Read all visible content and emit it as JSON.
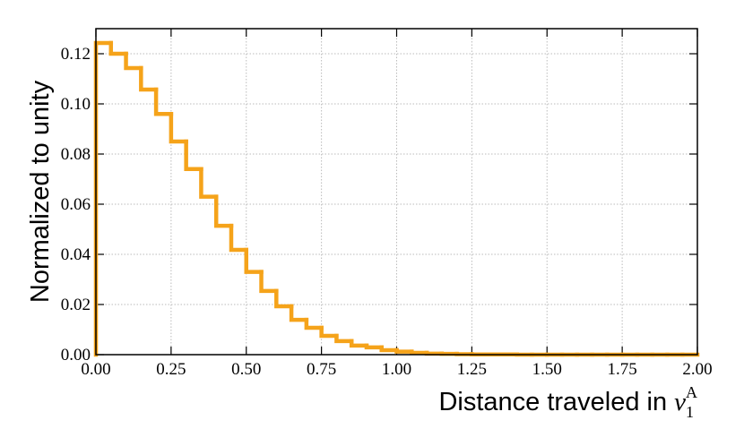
{
  "chart_data": {
    "type": "histogram",
    "x_label": {
      "text": "Distance traveled in",
      "symbol": "v",
      "subscript": "1",
      "superscript": "A"
    },
    "y_label": "Normalized to unity",
    "bins": [
      0.0,
      0.05,
      0.1,
      0.15,
      0.2,
      0.25,
      0.3,
      0.35,
      0.4,
      0.45,
      0.5,
      0.55,
      0.6,
      0.65,
      0.7,
      0.75,
      0.8,
      0.85,
      0.9,
      0.95,
      1.0,
      1.05,
      1.1,
      1.15,
      1.2,
      1.25,
      1.3,
      1.35,
      1.4,
      1.45,
      1.5,
      1.55,
      1.6,
      1.65,
      1.7,
      1.75,
      1.8,
      1.85,
      1.9,
      1.95,
      2.0
    ],
    "values": [
      0.1243,
      0.12,
      0.1143,
      0.1057,
      0.096,
      0.085,
      0.074,
      0.063,
      0.0514,
      0.0418,
      0.033,
      0.0254,
      0.0193,
      0.0139,
      0.0107,
      0.0075,
      0.0054,
      0.0036,
      0.0029,
      0.0018,
      0.0012,
      0.0007,
      0.0004,
      0.0003,
      0.0002,
      0.0001,
      0.0001,
      0.0001,
      0,
      0,
      0,
      0,
      0,
      0,
      0,
      0,
      0,
      0,
      0,
      0
    ],
    "color": "#f5a31a",
    "xlim": [
      0,
      2.0
    ],
    "ylim": [
      0,
      0.13
    ],
    "xticks": [
      {
        "value": 0,
        "label": "0.00"
      },
      {
        "value": 0.25,
        "label": "0.25"
      },
      {
        "value": 0.5,
        "label": "0.50"
      },
      {
        "value": 0.75,
        "label": "0.75"
      },
      {
        "value": 1.0,
        "label": "1.00"
      },
      {
        "value": 1.25,
        "label": "1.25"
      },
      {
        "value": 1.5,
        "label": "1.50"
      },
      {
        "value": 1.75,
        "label": "1.75"
      },
      {
        "value": 2.0,
        "label": "2.00"
      }
    ],
    "yticks": [
      {
        "value": 0,
        "label": "0.00"
      },
      {
        "value": 0.02,
        "label": "0.02"
      },
      {
        "value": 0.04,
        "label": "0.04"
      },
      {
        "value": 0.06,
        "label": "0.06"
      },
      {
        "value": 0.08,
        "label": "0.08"
      },
      {
        "value": 0.1,
        "label": "0.10"
      },
      {
        "value": 0.12,
        "label": "0.12"
      }
    ],
    "grid": true
  }
}
